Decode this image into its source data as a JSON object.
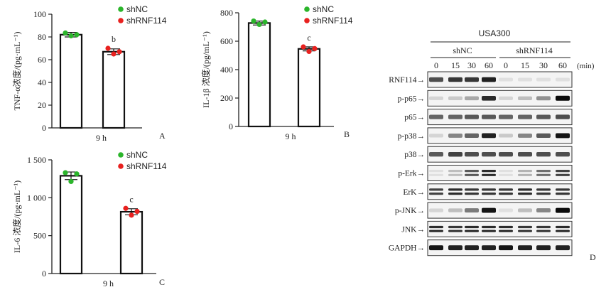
{
  "chart_data": [
    {
      "panel": "A",
      "type": "bar",
      "ylabel": "TNF-α浓度/(pg·mL⁻¹)",
      "xlabel": "9 h",
      "ylim": [
        0,
        100
      ],
      "yticks": [
        0,
        20,
        40,
        60,
        80,
        100
      ],
      "ytick_labels": [
        "0",
        "20",
        "40",
        "60",
        "80",
        "100"
      ],
      "categories": [
        "shNC",
        "shRNF114"
      ],
      "values": [
        82,
        67
      ],
      "error": [
        2,
        2.5
      ],
      "points": [
        [
          83.5,
          81,
          82
        ],
        [
          70,
          65,
          67
        ]
      ],
      "sig_labels": [
        "",
        "b"
      ],
      "legend": [
        "shNC",
        "shRNF114"
      ]
    },
    {
      "panel": "B",
      "type": "bar",
      "ylabel": "IL-1β 浓度/(pg/mL⁻¹)",
      "xlabel": "9 h",
      "ylim": [
        0,
        800
      ],
      "yticks": [
        0,
        200,
        400,
        600,
        800
      ],
      "ytick_labels": [
        "0",
        "200",
        "400",
        "600",
        "800"
      ],
      "categories": [
        "shNC",
        "shRNF114"
      ],
      "values": [
        728,
        546
      ],
      "error": [
        14,
        14
      ],
      "points": [
        [
          742,
          718,
          735
        ],
        [
          560,
          528,
          548
        ]
      ],
      "sig_labels": [
        "",
        "c"
      ],
      "legend": [
        "shNC",
        "shRNF114"
      ]
    },
    {
      "panel": "C",
      "type": "bar",
      "ylabel": "IL-6 浓度/(pg·mL⁻¹)",
      "xlabel": "9 h",
      "ylim": [
        0,
        1500
      ],
      "yticks": [
        0,
        500,
        1000,
        1500
      ],
      "ytick_labels": [
        "0",
        "500",
        "1 000",
        "1 500"
      ],
      "categories": [
        "shNC",
        "shRNF114"
      ],
      "values": [
        1290,
        815
      ],
      "error": [
        50,
        40
      ],
      "points": [
        [
          1330,
          1215,
          1315
        ],
        [
          860,
          770,
          820
        ]
      ],
      "sig_labels": [
        "",
        "c"
      ],
      "legend": [
        "shNC",
        "shRNF114"
      ]
    }
  ],
  "colors": {
    "shNC": "#2bb52b",
    "shRNF114": "#e8211f"
  },
  "blot": {
    "panel": "D",
    "treatment": "USA300",
    "groups": [
      "shNC",
      "shRNF114"
    ],
    "timepoints": [
      "0",
      "15",
      "30",
      "60",
      "0",
      "15",
      "30",
      "60"
    ],
    "unit": "(min)",
    "rows": [
      {
        "label": "RNF114→",
        "intensity": [
          0.7,
          0.8,
          0.8,
          0.9,
          0.05,
          0.05,
          0.05,
          0.05
        ],
        "double": false
      },
      {
        "label": "p-p65→",
        "intensity": [
          0.1,
          0.15,
          0.3,
          0.85,
          0.1,
          0.2,
          0.4,
          1.0
        ],
        "double": false
      },
      {
        "label": "p65→",
        "intensity": [
          0.6,
          0.6,
          0.65,
          0.65,
          0.6,
          0.6,
          0.65,
          0.7
        ],
        "double": false
      },
      {
        "label": "p-p38→",
        "intensity": [
          0.1,
          0.45,
          0.6,
          0.9,
          0.15,
          0.45,
          0.65,
          0.95
        ],
        "double": false
      },
      {
        "label": "p38→",
        "intensity": [
          0.65,
          0.75,
          0.7,
          0.7,
          0.7,
          0.7,
          0.7,
          0.7
        ],
        "double": false
      },
      {
        "label": "p-Erk→",
        "intensity": [
          0.05,
          0.2,
          0.65,
          0.85,
          0.05,
          0.25,
          0.55,
          0.75
        ],
        "double": true
      },
      {
        "label": "ErK→",
        "intensity": [
          0.75,
          0.85,
          0.8,
          0.8,
          0.8,
          0.85,
          0.8,
          0.8
        ],
        "double": true
      },
      {
        "label": "p-JNK→",
        "intensity": [
          0.1,
          0.2,
          0.5,
          0.95,
          0.05,
          0.2,
          0.45,
          1.0
        ],
        "double": false
      },
      {
        "label": "JNK→",
        "intensity": [
          0.85,
          0.8,
          0.85,
          0.85,
          0.85,
          0.8,
          0.8,
          0.85
        ],
        "double": true
      },
      {
        "label": "GAPDH→",
        "intensity": [
          0.95,
          0.9,
          0.9,
          0.9,
          0.95,
          0.9,
          0.9,
          0.9
        ],
        "double": false
      }
    ]
  }
}
